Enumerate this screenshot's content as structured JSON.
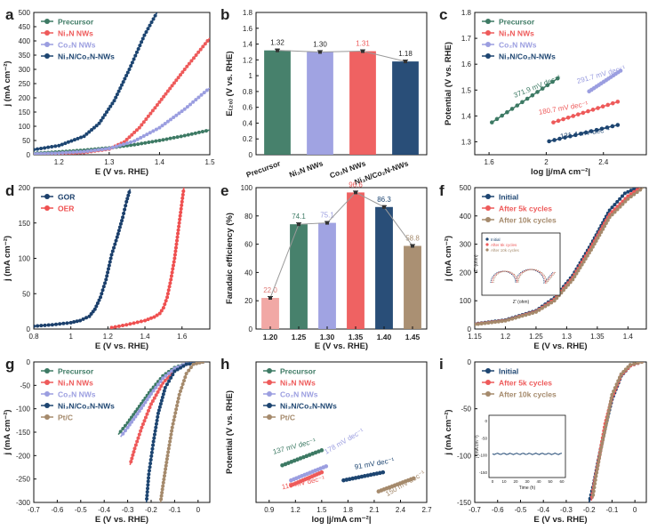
{
  "colors": {
    "green": "#3d7a64",
    "red": "#ee5a5a",
    "lav": "#9b9ee0",
    "navy": "#1d4571",
    "tan": "#a58a6c",
    "gor": "#1b3f6b",
    "oer": "#ef5050",
    "text": "#222222",
    "grey": "#9a9a9a"
  },
  "chart_data": [
    {
      "id": "a",
      "label": "a",
      "type": "line",
      "xlabel": "E (V vs. RHE)",
      "ylabel": "j (mA cm⁻²)",
      "xlim": [
        1.15,
        1.5
      ],
      "ylim": [
        0,
        500
      ],
      "xticks": [
        1.2,
        1.3,
        1.4,
        1.5
      ],
      "yticks": [
        0,
        50,
        100,
        150,
        200,
        250,
        300,
        350,
        400,
        450,
        500
      ],
      "legend": [
        "Precursor",
        "Ni₃N NWs",
        "Co₂N NWs",
        "Ni₃N/Co₂N-NWs"
      ],
      "series": [
        {
          "name": "Precursor",
          "color": "green",
          "x": [
            1.15,
            1.2,
            1.25,
            1.3,
            1.35,
            1.4,
            1.45,
            1.5
          ],
          "y": [
            5,
            10,
            16,
            24,
            35,
            50,
            67,
            87
          ]
        },
        {
          "name": "Ni₃N NWs",
          "color": "red",
          "x": [
            1.15,
            1.2,
            1.25,
            1.3,
            1.33,
            1.36,
            1.4,
            1.45,
            1.5
          ],
          "y": [
            2,
            4,
            8,
            20,
            45,
            95,
            185,
            300,
            410
          ]
        },
        {
          "name": "Co₂N NWs",
          "color": "lav",
          "x": [
            1.15,
            1.2,
            1.25,
            1.3,
            1.35,
            1.4,
            1.45,
            1.5
          ],
          "y": [
            3,
            6,
            11,
            22,
            48,
            95,
            160,
            235
          ]
        },
        {
          "name": "Ni₃N/Co₂N-NWs",
          "color": "navy",
          "x": [
            1.15,
            1.2,
            1.25,
            1.28,
            1.31,
            1.34,
            1.37,
            1.395
          ],
          "y": [
            18,
            32,
            65,
            110,
            190,
            300,
            420,
            500
          ]
        }
      ]
    },
    {
      "id": "b",
      "label": "b",
      "type": "bar",
      "ylabel": "E₍₂₀₎ (V vs. RHE)",
      "categories": [
        "Precursor",
        "Ni₃N NWs",
        "Co₂N NWs",
        "Ni₃N/Co₂N-NWs"
      ],
      "values": [
        1.32,
        1.3,
        1.31,
        1.18
      ],
      "value_labels": [
        "1.32",
        "1.30",
        "1.31",
        "1.18"
      ],
      "bar_colors": [
        "green",
        "lav",
        "red",
        "navy"
      ],
      "label_colors": [
        "text",
        "text",
        "red",
        "text"
      ],
      "ylim": [
        0,
        1.8
      ],
      "yticks": [
        0,
        0.2,
        0.4,
        0.6,
        0.8,
        1.0,
        1.2,
        1.4,
        1.6,
        1.8
      ]
    },
    {
      "id": "c",
      "label": "c",
      "type": "scatter",
      "xlabel": "log |j/mA cm⁻²|",
      "ylabel": "Potential (V vs. RHE)",
      "xlim": [
        1.5,
        2.7
      ],
      "ylim": [
        1.25,
        1.8
      ],
      "xticks": [
        1.6,
        2.0,
        2.4
      ],
      "yticks": [
        1.3,
        1.4,
        1.5,
        1.6,
        1.7,
        1.8
      ],
      "legend": [
        "Precursor",
        "Ni₃N NWs",
        "Co₂N NWs",
        "Ni₃N/Co₂N-NWs"
      ],
      "series": [
        {
          "name": "Precursor",
          "color": "green",
          "x0": 1.62,
          "x1": 2.08,
          "y0": 1.375,
          "y1": 1.545,
          "slope_label": "371.9 mV dec⁻¹",
          "ann_x": 1.78,
          "ann_y": 1.47,
          "ann_rot": -22
        },
        {
          "name": "Ni₃N NWs",
          "color": "red",
          "x0": 2.05,
          "x1": 2.5,
          "y0": 1.375,
          "y1": 1.455,
          "slope_label": "180.7 mV dec⁻¹",
          "ann_x": 1.95,
          "ann_y": 1.405,
          "ann_rot": -10
        },
        {
          "name": "Co₂N NWs",
          "color": "lav",
          "x0": 2.3,
          "x1": 2.52,
          "y0": 1.495,
          "y1": 1.575,
          "slope_label": "291.7 mV dec⁻¹",
          "ann_x": 2.22,
          "ann_y": 1.525,
          "ann_rot": -16
        },
        {
          "name": "Ni₃N/Co₂N-NWs",
          "color": "navy",
          "x0": 2.02,
          "x1": 2.5,
          "y0": 1.302,
          "y1": 1.365,
          "slope_label": "131.4 mV dec⁻¹",
          "ann_x": 2.1,
          "ann_y": 1.312,
          "ann_rot": -8
        }
      ]
    },
    {
      "id": "d",
      "label": "d",
      "type": "scatter",
      "xlabel": "E (V vs. RHE)",
      "ylabel": "j (mA cm⁻²)",
      "xlim": [
        0.8,
        1.75
      ],
      "ylim": [
        0,
        200
      ],
      "xticks": [
        0.8,
        1.0,
        1.2,
        1.4,
        1.6
      ],
      "yticks": [
        0,
        50,
        100,
        150,
        200
      ],
      "legend": [
        "GOR",
        "OER"
      ],
      "series": [
        {
          "name": "GOR",
          "color": "gor",
          "x": [
            0.8,
            0.9,
            1.0,
            1.05,
            1.1,
            1.13,
            1.16,
            1.19,
            1.22,
            1.25,
            1.28,
            1.3,
            1.32
          ],
          "y": [
            4,
            6,
            9,
            12,
            18,
            28,
            45,
            70,
            105,
            130,
            158,
            180,
            198
          ]
        },
        {
          "name": "OER",
          "color": "oer",
          "x": [
            1.22,
            1.3,
            1.4,
            1.45,
            1.48,
            1.5,
            1.52,
            1.54,
            1.56,
            1.58,
            1.6,
            1.61
          ],
          "y": [
            2,
            6,
            12,
            17,
            22,
            30,
            45,
            70,
            100,
            140,
            180,
            200
          ]
        }
      ]
    },
    {
      "id": "e",
      "label": "e",
      "type": "bar",
      "xlabel": "E (V vs. RHE)",
      "ylabel": "Faradaic efficiency (%)",
      "categories": [
        "1.20",
        "1.25",
        "1.30",
        "1.35",
        "1.40",
        "1.45"
      ],
      "values": [
        22.0,
        74.1,
        75.1,
        96.6,
        86.3,
        58.8
      ],
      "value_labels": [
        "22.0",
        "74.1",
        "75.1",
        "96.6",
        "86.3",
        "58.8"
      ],
      "bar_colors": [
        "#f0a3a0",
        "green",
        "lav",
        "red",
        "navy",
        "tan"
      ],
      "label_colors": [
        "#e07a76",
        "green",
        "lav",
        "red",
        "navy",
        "tan"
      ],
      "ylim": [
        0,
        100
      ],
      "yticks": [
        0,
        20,
        40,
        60,
        80,
        100
      ]
    },
    {
      "id": "f",
      "label": "f",
      "type": "line",
      "xlabel": "E (V vs. RHE)",
      "ylabel": "j (mA cm⁻²)",
      "xlim": [
        1.15,
        1.43
      ],
      "ylim": [
        0,
        500
      ],
      "xticks": [
        1.15,
        1.2,
        1.25,
        1.3,
        1.35,
        1.4
      ],
      "yticks": [
        0,
        100,
        200,
        300,
        400,
        500
      ],
      "legend": [
        "Initial",
        "After 5k cycles",
        "After 10k cycles"
      ],
      "series": [
        {
          "name": "Initial",
          "color": "navy",
          "x": [
            1.15,
            1.2,
            1.25,
            1.28,
            1.31,
            1.34,
            1.37,
            1.395,
            1.415
          ],
          "y": [
            18,
            32,
            65,
            110,
            190,
            300,
            420,
            480,
            500
          ]
        },
        {
          "name": "After 5k cycles",
          "color": "red",
          "x": [
            1.15,
            1.2,
            1.25,
            1.28,
            1.31,
            1.34,
            1.37,
            1.4,
            1.42
          ],
          "y": [
            17,
            30,
            62,
            105,
            182,
            290,
            405,
            470,
            500
          ]
        },
        {
          "name": "After 10k cycles",
          "color": "tan",
          "x": [
            1.15,
            1.2,
            1.25,
            1.28,
            1.31,
            1.34,
            1.37,
            1.4,
            1.425
          ],
          "y": [
            16,
            29,
            60,
            100,
            175,
            280,
            395,
            460,
            500
          ]
        }
      ],
      "inset": {
        "legend": [
          "Initial",
          "After 5k cycles",
          "After 10k cycles"
        ],
        "xlabel": "Z' (ohm)",
        "ylabel": "-Z'' (ohm)"
      }
    },
    {
      "id": "g",
      "label": "g",
      "type": "line",
      "xlabel": "E (V vs. RHE)",
      "ylabel": "j (mA cm⁻²)",
      "xlim": [
        -0.7,
        0.05
      ],
      "ylim": [
        -300,
        0
      ],
      "xticks": [
        -0.7,
        -0.6,
        -0.5,
        -0.4,
        -0.3,
        -0.2,
        -0.1,
        0.0
      ],
      "yticks": [
        0,
        -50,
        -100,
        -150,
        -200,
        -250,
        -300
      ],
      "legend": [
        "Precursor",
        "Ni₃N NWs",
        "Co₂N NWs",
        "Ni₃N/Co₂N-NWs",
        "Pt/C"
      ],
      "series": [
        {
          "name": "Precursor",
          "color": "green",
          "x": [
            0.02,
            -0.05,
            -0.1,
            -0.15,
            -0.2,
            -0.25,
            -0.3,
            -0.34
          ],
          "y": [
            0,
            -4,
            -12,
            -30,
            -60,
            -95,
            -130,
            -155
          ]
        },
        {
          "name": "Ni₃N NWs",
          "color": "red",
          "x": [
            0.02,
            -0.05,
            -0.1,
            -0.15,
            -0.2,
            -0.24,
            -0.27,
            -0.29
          ],
          "y": [
            0,
            -5,
            -18,
            -45,
            -90,
            -140,
            -185,
            -220
          ]
        },
        {
          "name": "Co₂N NWs",
          "color": "lav",
          "x": [
            0.02,
            -0.05,
            -0.1,
            -0.15,
            -0.2,
            -0.25,
            -0.3,
            -0.33
          ],
          "y": [
            0,
            -4,
            -14,
            -35,
            -68,
            -105,
            -140,
            -160
          ]
        },
        {
          "name": "Ni₃N/Co₂N-NWs",
          "color": "navy",
          "x": [
            0.02,
            -0.05,
            -0.1,
            -0.14,
            -0.17,
            -0.19,
            -0.21,
            -0.22
          ],
          "y": [
            0,
            -5,
            -20,
            -55,
            -110,
            -170,
            -240,
            -300
          ]
        },
        {
          "name": "Pt/C",
          "color": "tan",
          "x": [
            0.02,
            -0.02,
            -0.05,
            -0.08,
            -0.11,
            -0.13,
            -0.15,
            -0.16
          ],
          "y": [
            0,
            -5,
            -25,
            -70,
            -140,
            -200,
            -265,
            -300
          ]
        }
      ]
    },
    {
      "id": "h",
      "label": "h",
      "type": "scatter",
      "xlabel": "log |j/mA cm⁻²|",
      "ylabel": "Potential (V vs. RHE)",
      "xlim": [
        0.75,
        2.7
      ],
      "ylim": [
        -0.3,
        0.4
      ],
      "xticks": [
        0.9,
        1.2,
        1.5,
        1.8,
        2.1,
        2.4,
        2.7
      ],
      "yticks": [],
      "legend": [
        "Precursor",
        "Ni₃N NWs",
        "Co₂N NWs",
        "Ni₃N/Co₂N-NWs",
        "Pt/C"
      ],
      "series": [
        {
          "name": "Precursor",
          "color": "green",
          "x0": 1.05,
          "x1": 1.5,
          "y0": -0.115,
          "y1": -0.04,
          "slope_label": "137 mV dec⁻¹",
          "ann_x": 0.95,
          "ann_y": -0.06,
          "ann_rot": -15
        },
        {
          "name": "Ni₃N NWs",
          "color": "red",
          "x0": 1.15,
          "x1": 1.5,
          "y0": -0.215,
          "y1": -0.15,
          "slope_label": "119 mV dec⁻¹",
          "ann_x": 1.05,
          "ann_y": -0.235,
          "ann_rot": -12
        },
        {
          "name": "Co₂N NWs",
          "color": "lav",
          "x0": 1.15,
          "x1": 1.55,
          "y0": -0.19,
          "y1": -0.12,
          "slope_label": "178 mV dec⁻¹",
          "ann_x": 1.55,
          "ann_y": -0.06,
          "ann_rot": -30
        },
        {
          "name": "Ni₃N/Co₂N-NWs",
          "color": "navy",
          "x0": 1.75,
          "x1": 2.2,
          "y0": -0.19,
          "y1": -0.15,
          "slope_label": "91 mV dec⁻¹",
          "ann_x": 1.88,
          "ann_y": -0.135,
          "ann_rot": -10
        },
        {
          "name": "Pt/C",
          "color": "tan",
          "x0": 2.15,
          "x1": 2.55,
          "y0": -0.245,
          "y1": -0.18,
          "slope_label": "150 mV dec⁻¹",
          "ann_x": 2.25,
          "ann_y": -0.27,
          "ann_rot": -30
        }
      ]
    },
    {
      "id": "i",
      "label": "i",
      "type": "line",
      "xlabel": "E (V vs. RHE)",
      "ylabel": "j (mA cm⁻²)",
      "xlim": [
        -0.7,
        0.05
      ],
      "ylim": [
        -150,
        0
      ],
      "xticks": [
        -0.7,
        -0.6,
        -0.5,
        -0.4,
        -0.3,
        -0.2,
        -0.1,
        0.0
      ],
      "yticks": [
        0,
        -50,
        -100,
        -150
      ],
      "legend": [
        "Initial",
        "After 5k cycles",
        "After 10k cycles"
      ],
      "series": [
        {
          "name": "Initial",
          "color": "navy",
          "x": [
            0.03,
            -0.02,
            -0.06,
            -0.1,
            -0.13,
            -0.16,
            -0.18,
            -0.2
          ],
          "y": [
            0,
            -4,
            -15,
            -40,
            -70,
            -105,
            -130,
            -150
          ]
        },
        {
          "name": "After 5k cycles",
          "color": "red",
          "x": [
            0.03,
            -0.02,
            -0.06,
            -0.1,
            -0.13,
            -0.155,
            -0.175,
            -0.19
          ],
          "y": [
            0,
            -4,
            -14,
            -38,
            -66,
            -100,
            -126,
            -148
          ]
        },
        {
          "name": "After 10k cycles",
          "color": "tan",
          "x": [
            0.03,
            -0.02,
            -0.06,
            -0.1,
            -0.12,
            -0.15,
            -0.17,
            -0.185
          ],
          "y": [
            0,
            -3,
            -13,
            -35,
            -60,
            -95,
            -122,
            -146
          ]
        }
      ],
      "inset": {
        "xlabel": "Time (h)",
        "ylabel": "j (mA cm⁻²)",
        "xticks": [
          "0",
          "10",
          "20",
          "30",
          "40",
          "50",
          "60"
        ],
        "yticks": [
          "0",
          "-50",
          "-100",
          "-150"
        ]
      }
    }
  ]
}
